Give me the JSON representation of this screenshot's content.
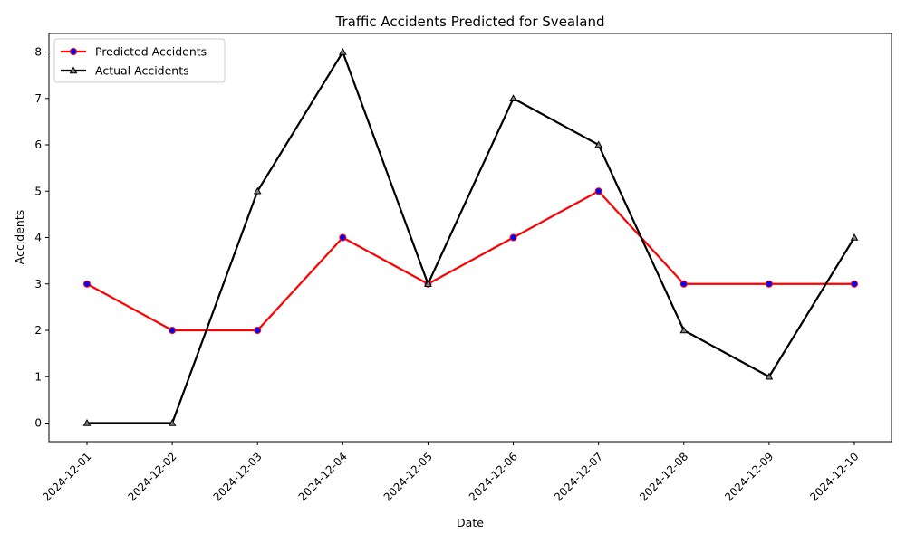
{
  "chart_data": {
    "type": "line",
    "title": "Traffic Accidents Predicted for Svealand",
    "xlabel": "Date",
    "ylabel": "Accidents",
    "categories": [
      "2024-12-01",
      "2024-12-02",
      "2024-12-03",
      "2024-12-04",
      "2024-12-05",
      "2024-12-06",
      "2024-12-07",
      "2024-12-08",
      "2024-12-09",
      "2024-12-10"
    ],
    "ylim": [
      -0.4,
      8.4
    ],
    "yticks": [
      0,
      1,
      2,
      3,
      4,
      5,
      6,
      7,
      8
    ],
    "grid": false,
    "legend_position": "top-left",
    "series": [
      {
        "name": "Predicted Accidents",
        "values": [
          3,
          2,
          2,
          4,
          3,
          4,
          5,
          3,
          3,
          3
        ],
        "color": "#ff0000",
        "marker": "circle",
        "marker_fill": "#0000ff"
      },
      {
        "name": "Actual Accidents",
        "values": [
          0,
          0,
          5,
          8,
          3,
          7,
          6,
          2,
          1,
          4
        ],
        "color": "#000000",
        "marker": "triangle",
        "marker_fill": "#808080"
      }
    ]
  }
}
